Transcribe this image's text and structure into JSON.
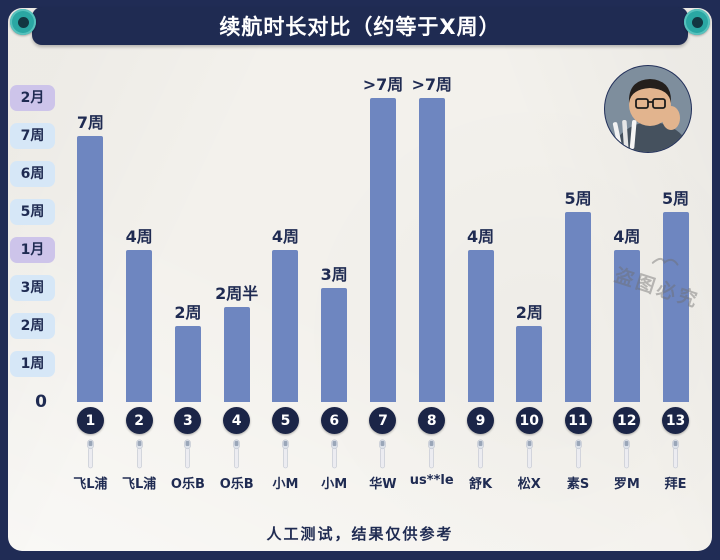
{
  "title_bar": {
    "title": "续航时长对比（约等于X周）"
  },
  "watermark": {
    "text": "盗图必究"
  },
  "chart_data": {
    "type": "bar",
    "title": "续航时长对比（约等于X周）",
    "xlabel": "",
    "ylabel": "",
    "ylim": [
      0,
      8.3
    ],
    "grid": false,
    "legend": false,
    "bar_color": "#6e86c0",
    "yticks": [
      {
        "label": "2月",
        "value": 8,
        "kind": "month"
      },
      {
        "label": "7周",
        "value": 7,
        "kind": "week"
      },
      {
        "label": "6周",
        "value": 6,
        "kind": "week"
      },
      {
        "label": "5周",
        "value": 5,
        "kind": "week"
      },
      {
        "label": "1月",
        "value": 4,
        "kind": "month"
      },
      {
        "label": "3周",
        "value": 3,
        "kind": "week"
      },
      {
        "label": "2周",
        "value": 2,
        "kind": "week"
      },
      {
        "label": "1周",
        "value": 1,
        "kind": "week"
      },
      {
        "label": "0",
        "value": 0,
        "kind": "zero"
      }
    ],
    "bars": [
      {
        "index": "1",
        "brand": "飞L浦",
        "label": "7周",
        "weeks": 7
      },
      {
        "index": "2",
        "brand": "飞L浦",
        "label": "4周",
        "weeks": 4
      },
      {
        "index": "3",
        "brand": "O乐B",
        "label": "2周",
        "weeks": 2
      },
      {
        "index": "4",
        "brand": "O乐B",
        "label": "2周半",
        "weeks": 2.5
      },
      {
        "index": "5",
        "brand": "小M",
        "label": "4周",
        "weeks": 4
      },
      {
        "index": "6",
        "brand": "小M",
        "label": "3周",
        "weeks": 3
      },
      {
        "index": "7",
        "brand": "华W",
        "label": ">7周",
        "weeks": 8
      },
      {
        "index": "8",
        "brand": "us**le",
        "label": ">7周",
        "weeks": 8
      },
      {
        "index": "9",
        "brand": "舒K",
        "label": "4周",
        "weeks": 4
      },
      {
        "index": "10",
        "brand": "松X",
        "label": "2周",
        "weeks": 2
      },
      {
        "index": "11",
        "brand": "素S",
        "label": "5周",
        "weeks": 5
      },
      {
        "index": "12",
        "brand": "罗M",
        "label": "4周",
        "weeks": 4
      },
      {
        "index": "13",
        "brand": "拜E",
        "label": "5周",
        "weeks": 5
      }
    ],
    "footnote": "人工测试，结果仅供参考"
  },
  "colors": {
    "navy": "#1f2b52",
    "teal": "#2aa7a3",
    "paper": "#f3f1ec",
    "bar": "#6e86c0",
    "week_badge": "#d6e7f7",
    "month_badge": "#cdc4ea"
  }
}
